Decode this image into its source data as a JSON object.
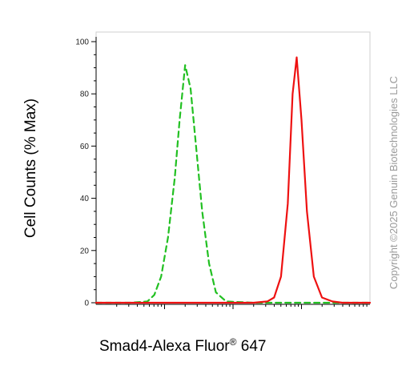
{
  "chart_data": {
    "type": "line",
    "ylabel": "Cell Counts (% Max)",
    "xlabel_main": "Smad4-Alexa Fluor",
    "xlabel_sup": "®",
    "xlabel_tail": " 647",
    "ylim": [
      0,
      100
    ],
    "yticks": [
      0,
      20,
      40,
      60,
      80,
      100
    ],
    "xscale": "log",
    "xdecades": 4,
    "grid": false,
    "series": [
      {
        "style": "dashed",
        "color": "#22c022",
        "x": [
          0.0,
          0.5,
          0.75,
          0.85,
          0.95,
          1.05,
          1.15,
          1.22,
          1.3,
          1.38,
          1.46,
          1.55,
          1.65,
          1.75,
          1.9,
          2.3,
          3.0,
          4.0
        ],
        "y": [
          0,
          0,
          0.5,
          3,
          10,
          25,
          48,
          70,
          91,
          82,
          60,
          35,
          15,
          4,
          0.5,
          0,
          0,
          0
        ]
      },
      {
        "style": "solid",
        "color": "#ee1111",
        "x": [
          0.0,
          1.0,
          2.0,
          2.3,
          2.5,
          2.6,
          2.7,
          2.8,
          2.87,
          2.93,
          3.0,
          3.08,
          3.18,
          3.3,
          3.45,
          3.6,
          4.0
        ],
        "y": [
          0,
          0,
          0,
          0,
          0.5,
          2,
          10,
          38,
          80,
          94,
          70,
          35,
          10,
          2,
          0.5,
          0,
          0
        ]
      }
    ]
  },
  "copyright": "Copyright ©2025 Genuin Biotechnologies LLC"
}
